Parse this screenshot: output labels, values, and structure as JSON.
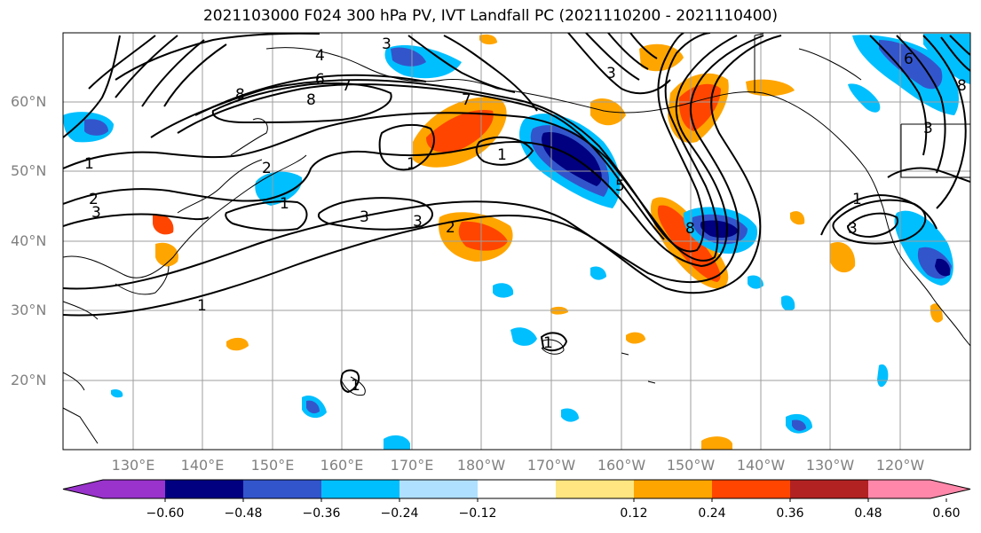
{
  "title": "2021103000 F024 300 hPa PV, IVT Landfall PC (2021110200 - 2021110400)",
  "lat_labels": [
    "60°N",
    "50°N",
    "40°N",
    "30°N",
    "20°N"
  ],
  "lon_labels": [
    "130°E",
    "140°E",
    "150°E",
    "160°E",
    "170°E",
    "180°W",
    "170°W",
    "160°W",
    "150°W",
    "140°W",
    "130°W",
    "120°W"
  ],
  "colorbar": {
    "colors": [
      "#9933cc",
      "#000080",
      "#3355cc",
      "#00bfff",
      "#b0e0ff",
      "#ffffff",
      "#ffe680",
      "#ffa500",
      "#ff4500",
      "#b22222",
      "#ff88aa"
    ],
    "tick_labels": [
      "−0.60",
      "−0.48",
      "−0.36",
      "−0.24",
      "−0.12",
      "0.12",
      "0.24",
      "0.36",
      "0.48",
      "0.60"
    ]
  },
  "contour_labels": [
    "1",
    "1",
    "1",
    "1",
    "1",
    "1",
    "1",
    "1",
    "2",
    "2",
    "2",
    "3",
    "3",
    "3",
    "3",
    "3",
    "3",
    "3",
    "4",
    "5",
    "6",
    "6",
    "7",
    "7",
    "8",
    "8",
    "8",
    "8"
  ]
}
